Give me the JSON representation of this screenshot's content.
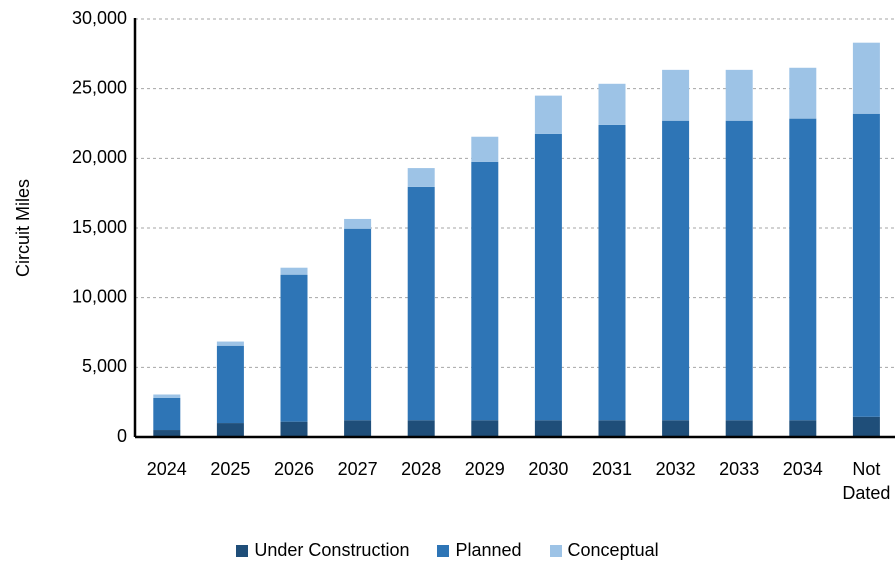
{
  "chart_data": {
    "type": "stacked_bar",
    "y_label": "Circuit Miles",
    "categories": [
      "2024",
      "2025",
      "2026",
      "2027",
      "2028",
      "2029",
      "2030",
      "2031",
      "2032",
      "2033",
      "2034",
      "Not Dated"
    ],
    "series": [
      {
        "name": "Under Construction",
        "color": "#1f4e79",
        "values": [
          500,
          1000,
          1100,
          1200,
          1200,
          1200,
          1200,
          1200,
          1200,
          1200,
          1200,
          1450
        ]
      },
      {
        "name": "Planned",
        "color": "#2e75b6",
        "values": [
          2300,
          5550,
          10550,
          13750,
          16750,
          18550,
          20550,
          21200,
          21500,
          21500,
          21650,
          21750
        ]
      },
      {
        "name": "Conceptual",
        "color": "#9dc3e6",
        "values": [
          250,
          300,
          500,
          700,
          1350,
          1800,
          2750,
          2950,
          3650,
          3650,
          3650,
          5100
        ]
      }
    ],
    "ylim": [
      0,
      30000
    ],
    "yticks": [
      0,
      {
        "value": 5000,
        "label": "5,000"
      },
      {
        "value": 10000,
        "label": "10,000"
      },
      {
        "value": 15000,
        "label": "15,000"
      },
      {
        "value": 20000,
        "label": "20,000"
      },
      {
        "value": 25000,
        "label": "25,000"
      },
      {
        "value": 30000,
        "label": "30,000"
      }
    ],
    "grid": true
  }
}
